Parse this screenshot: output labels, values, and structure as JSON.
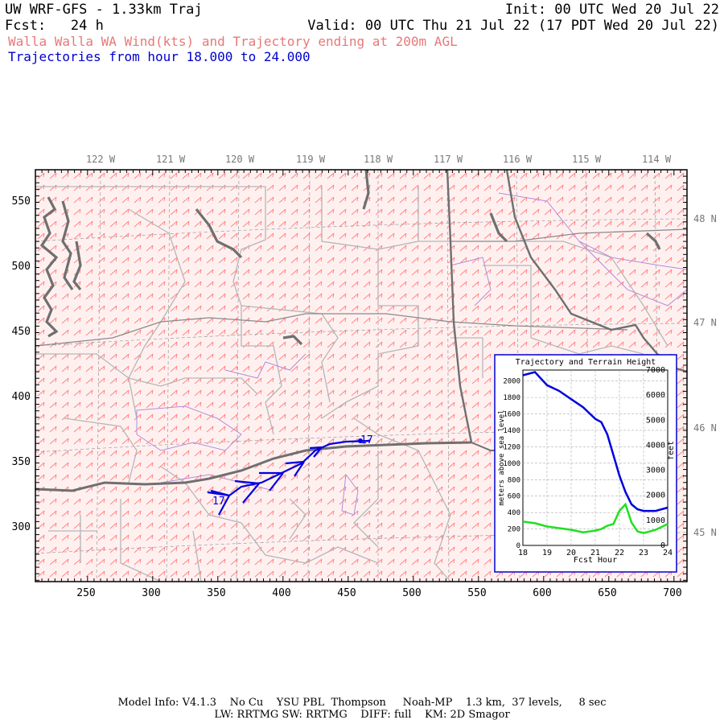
{
  "header": {
    "model": "UW WRF-GFS - 1.33km Traj",
    "init": "Init: 00 UTC Wed 20 Jul 22",
    "fcst_label": "Fcst:",
    "fcst_value": "24 h",
    "valid": "Valid: 00 UTC Thu 21 Jul 22 (17 PDT Wed 20 Jul 22)",
    "subtitle": "Walla Walla WA Wind(kts) and Trajectory ending at 200m AGL",
    "traj_hours": "Trajectories from hour  18.000 to  24.000"
  },
  "map": {
    "lon_labels": [
      "122 W",
      "121 W",
      "120 W",
      "119 W",
      "118 W",
      "117 W",
      "116 W",
      "115 W",
      "114 W"
    ],
    "lat_labels": [
      "48 N",
      "47 N",
      "46 N",
      "45 N"
    ],
    "x_ticks": [
      "250",
      "300",
      "350",
      "400",
      "450",
      "500",
      "550",
      "600",
      "650",
      "700"
    ],
    "y_ticks": [
      "550",
      "500",
      "450",
      "400",
      "350",
      "300"
    ],
    "trajectory_labels": {
      "start": "17",
      "end": "17"
    },
    "colors": {
      "wind_barbs": "#ff7070",
      "trajectory": "#0000e0",
      "coast": "#6a6a6a",
      "counties": "#c0a0d8",
      "roads": "#b0b0b0"
    }
  },
  "inset": {
    "title": "Trajectory and Terrain Height",
    "xlabel": "Fcst Hour",
    "ylabel_left": "meters above sea level",
    "ylabel_right": "feet",
    "x_ticks": [
      "18",
      "19",
      "20",
      "21",
      "22",
      "23",
      "24"
    ],
    "y_ticks_left": [
      "0",
      "200",
      "400",
      "600",
      "800",
      "1000",
      "1200",
      "1400",
      "1600",
      "1800",
      "2000"
    ],
    "y_ticks_right": [
      "0",
      "1000",
      "2000",
      "3000",
      "4000",
      "5000",
      "6000",
      "7000"
    ]
  },
  "chart_data": {
    "type": "line",
    "title": "Trajectory and Terrain Height",
    "xlabel": "Fcst Hour",
    "ylabel": "meters above sea level",
    "xlim": [
      18,
      24
    ],
    "ylim": [
      0,
      2134
    ],
    "grid": true,
    "x": [
      18,
      18.5,
      19,
      19.5,
      20,
      20.5,
      21,
      21.25,
      21.5,
      21.75,
      22,
      22.25,
      22.5,
      22.75,
      23,
      23.5,
      24
    ],
    "series": [
      {
        "values": [
          2070,
          2110,
          1950,
          1880,
          1780,
          1680,
          1540,
          1500,
          1350,
          1100,
          850,
          650,
          500,
          440,
          420,
          420,
          460
        ],
        "color": "#0000e0"
      },
      {
        "values": [
          290,
          270,
          230,
          210,
          190,
          160,
          180,
          200,
          240,
          260,
          420,
          500,
          280,
          170,
          150,
          190,
          260
        ],
        "color": "#20e020"
      }
    ]
  },
  "footer": {
    "line1": "Model Info: V4.1.3    No Cu    YSU PBL  Thompson     Noah-MP    1.3 km,  37 levels,     8 sec",
    "line2": "LW: RRTMG SW: RRTMG    DIFF: full    KM: 2D Smagor"
  }
}
